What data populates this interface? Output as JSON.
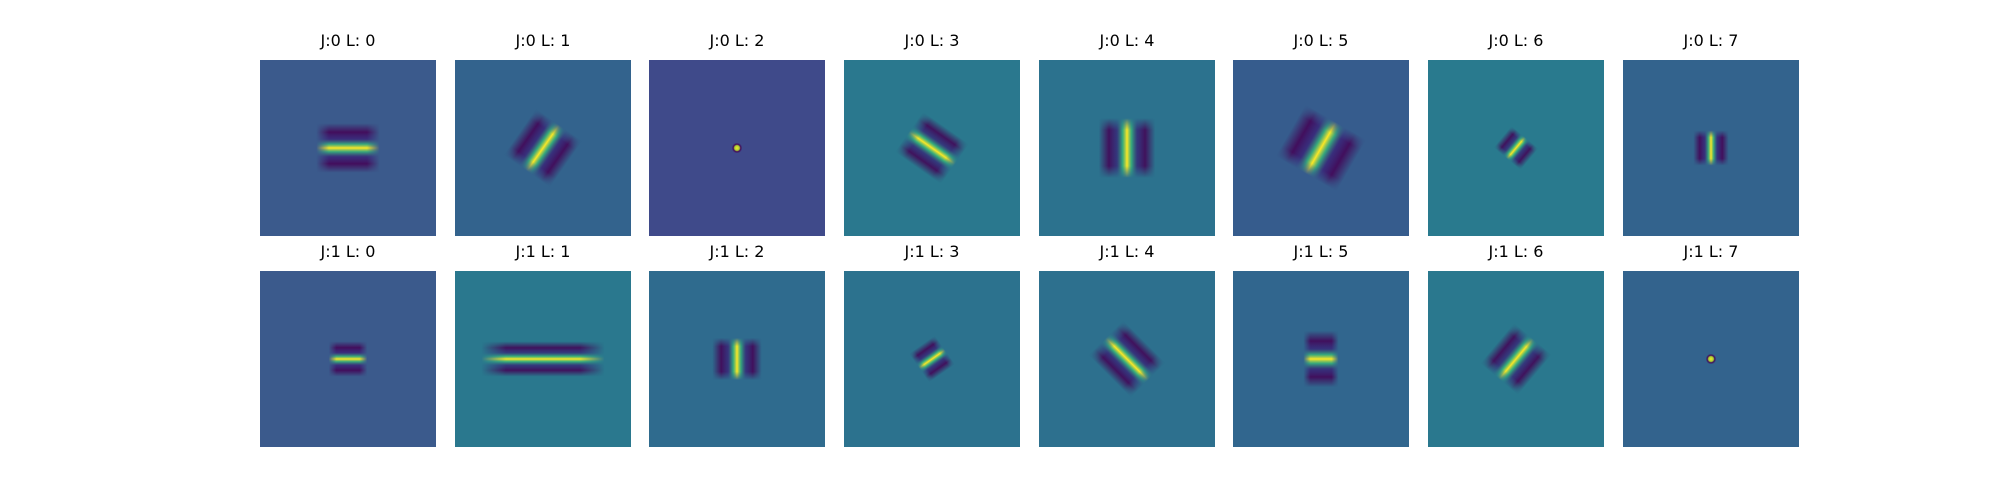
{
  "chart_data": {
    "type": "heatmap",
    "colormap": "viridis",
    "axes": "off",
    "grid": false,
    "legend": "none",
    "rows": 2,
    "cols": 8,
    "panels": [
      {
        "title": "J:0 L: 0",
        "J": 0,
        "L": 0,
        "background": "#3b5a8c",
        "orientation_deg": 0,
        "length": 0.36,
        "width": 0.14,
        "cycles": 1.0,
        "variant": "band"
      },
      {
        "title": "J:0 L: 1",
        "J": 0,
        "L": 1,
        "background": "#33638d",
        "orientation_deg": -55,
        "length": 0.32,
        "width": 0.16,
        "cycles": 1.0,
        "variant": "band"
      },
      {
        "title": "J:0 L: 2",
        "J": 0,
        "L": 2,
        "background": "#3f4a8a",
        "orientation_deg": 0,
        "length": 0.06,
        "width": 0.06,
        "cycles": 1.0,
        "variant": "dot"
      },
      {
        "title": "J:0 L: 3",
        "J": 0,
        "L": 3,
        "background": "#2a788e",
        "orientation_deg": 35,
        "length": 0.32,
        "width": 0.14,
        "cycles": 1.0,
        "variant": "band"
      },
      {
        "title": "J:0 L: 4",
        "J": 0,
        "L": 4,
        "background": "#2c728e",
        "orientation_deg": 90,
        "length": 0.34,
        "width": 0.16,
        "cycles": 1.0,
        "variant": "band"
      },
      {
        "title": "J:0 L: 5",
        "J": 0,
        "L": 5,
        "background": "#365c8d",
        "orientation_deg": -60,
        "length": 0.34,
        "width": 0.2,
        "cycles": 1.0,
        "variant": "band"
      },
      {
        "title": "J:0 L: 6",
        "J": 0,
        "L": 6,
        "background": "#297a8e",
        "orientation_deg": -50,
        "length": 0.16,
        "width": 0.1,
        "cycles": 1.0,
        "variant": "band"
      },
      {
        "title": "J:0 L: 7",
        "J": 0,
        "L": 7,
        "background": "#33638d",
        "orientation_deg": 90,
        "length": 0.2,
        "width": 0.1,
        "cycles": 1.0,
        "variant": "band"
      },
      {
        "title": "J:1 L: 0",
        "J": 1,
        "L": 0,
        "background": "#3b5a8c",
        "orientation_deg": 0,
        "length": 0.22,
        "width": 0.1,
        "cycles": 1.0,
        "variant": "band"
      },
      {
        "title": "J:1 L: 1",
        "J": 1,
        "L": 1,
        "background": "#2a788e",
        "orientation_deg": 0,
        "length": 0.7,
        "width": 0.1,
        "cycles": 1.0,
        "variant": "band"
      },
      {
        "title": "J:1 L: 2",
        "J": 1,
        "L": 2,
        "background": "#2f6b8e",
        "orientation_deg": 90,
        "length": 0.24,
        "width": 0.14,
        "cycles": 1.0,
        "variant": "band"
      },
      {
        "title": "J:1 L: 3",
        "J": 1,
        "L": 3,
        "background": "#2c728e",
        "orientation_deg": -35,
        "length": 0.18,
        "width": 0.1,
        "cycles": 1.0,
        "variant": "band"
      },
      {
        "title": "J:1 L: 4",
        "J": 1,
        "L": 4,
        "background": "#2d708e",
        "orientation_deg": 45,
        "length": 0.34,
        "width": 0.14,
        "cycles": 1.0,
        "variant": "band"
      },
      {
        "title": "J:1 L: 5",
        "J": 1,
        "L": 5,
        "background": "#31668e",
        "orientation_deg": 0,
        "length": 0.2,
        "width": 0.16,
        "cycles": 1.0,
        "variant": "band"
      },
      {
        "title": "J:1 L: 6",
        "J": 1,
        "L": 6,
        "background": "#2a788e",
        "orientation_deg": -50,
        "length": 0.3,
        "width": 0.14,
        "cycles": 1.0,
        "variant": "band"
      },
      {
        "title": "J:1 L: 7",
        "J": 1,
        "L": 7,
        "background": "#33638d",
        "orientation_deg": 0,
        "length": 0.06,
        "width": 0.06,
        "cycles": 1.0,
        "variant": "dot"
      }
    ]
  },
  "colors": {
    "peak": "#fde725",
    "bright": "#b5de2b",
    "green": "#35b779",
    "trough": "#440154",
    "dark": "#3b0f70"
  }
}
